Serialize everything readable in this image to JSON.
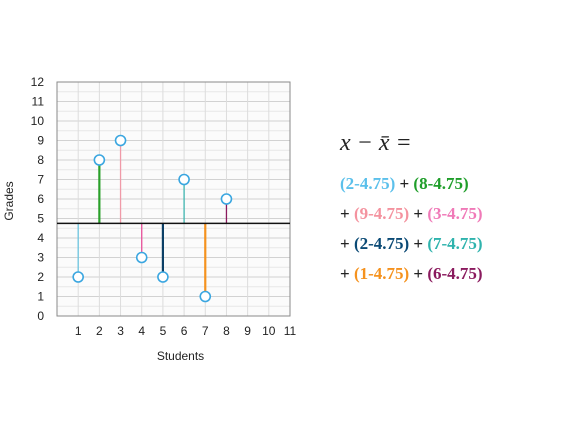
{
  "chart_data": {
    "type": "scatter",
    "style": "lollipop-deviation",
    "xlabel": "Students",
    "ylabel": "Grades",
    "xlim": [
      0,
      11
    ],
    "ylim": [
      0,
      12
    ],
    "x_ticks": [
      "1",
      "2",
      "3",
      "4",
      "5",
      "6",
      "7",
      "8",
      "9",
      "10",
      "11"
    ],
    "y_ticks": [
      "0",
      "1",
      "2",
      "3",
      "4",
      "5",
      "6",
      "7",
      "8",
      "9",
      "10",
      "11",
      "12"
    ],
    "mean_line": 4.75,
    "grid": true,
    "x": [
      1,
      2,
      3,
      4,
      5,
      6,
      7,
      8
    ],
    "values": [
      2,
      8,
      9,
      3,
      2,
      7,
      1,
      6
    ],
    "stem_colors": [
      "#6cc5e0",
      "#2aa02a",
      "#f09aa8",
      "#e8509a",
      "#0b3f66",
      "#3fb6b0",
      "#f5921e",
      "#8a1a5e"
    ]
  },
  "formula": {
    "lhs": "x − x̄ =",
    "lines": [
      [
        {
          "op": "",
          "text": "(2-4.75)",
          "color": "#5bc0eb"
        },
        {
          "op": "+",
          "text": "(8-4.75)",
          "color": "#1f9e2a"
        }
      ],
      [
        {
          "op": "+",
          "text": "(9-4.75)",
          "color": "#f4939f"
        },
        {
          "op": "+",
          "text": "(3-4.75)",
          "color": "#f07ab8"
        }
      ],
      [
        {
          "op": "+",
          "text": "(2-4.75)",
          "color": "#0b4a75"
        },
        {
          "op": "+",
          "text": "(7-4.75)",
          "color": "#2fb3ad"
        }
      ],
      [
        {
          "op": "+",
          "text": "(1-4.75)",
          "color": "#f5921e"
        },
        {
          "op": "+",
          "text": "(6-4.75)",
          "color": "#8a1a5e"
        }
      ]
    ]
  }
}
